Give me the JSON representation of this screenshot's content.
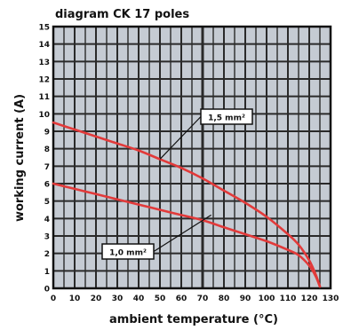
{
  "chart_data": {
    "type": "line",
    "title": "diagram CK 17 poles",
    "xlabel": "ambient temperature (°C)",
    "ylabel": "working current (A)",
    "xlim": [
      0,
      130
    ],
    "ylim": [
      0,
      15
    ],
    "x_ticks": [
      "0",
      "10",
      "20",
      "30",
      "40",
      "50",
      "60",
      "70",
      "80",
      "90",
      "100",
      "110",
      "120",
      "130"
    ],
    "y_ticks": [
      "0",
      "1",
      "2",
      "3",
      "4",
      "5",
      "6",
      "7",
      "8",
      "9",
      "10",
      "11",
      "12",
      "13",
      "14",
      "15"
    ],
    "grid": true,
    "colors": {
      "grid": "#2a2a2a",
      "cell": "#c5cbd3",
      "series": "#e23a3a",
      "accent_line": "#111111"
    },
    "series": [
      {
        "name": "1,5 mm²",
        "x": [
          0,
          10,
          20,
          30,
          40,
          50,
          60,
          70,
          80,
          90,
          100,
          110,
          115,
          120,
          123,
          125
        ],
        "y": [
          9.5,
          9.1,
          8.7,
          8.3,
          7.9,
          7.4,
          6.9,
          6.3,
          5.6,
          4.9,
          4.1,
          3.1,
          2.5,
          1.6,
          0.8,
          0.1
        ]
      },
      {
        "name": "1,0 mm²",
        "x": [
          0,
          10,
          20,
          30,
          40,
          50,
          60,
          70,
          80,
          90,
          100,
          110,
          115,
          120,
          123,
          125
        ],
        "y": [
          6.0,
          5.7,
          5.4,
          5.1,
          4.8,
          4.5,
          4.2,
          3.9,
          3.5,
          3.1,
          2.7,
          2.2,
          1.9,
          1.3,
          0.7,
          0.1
        ]
      }
    ]
  }
}
